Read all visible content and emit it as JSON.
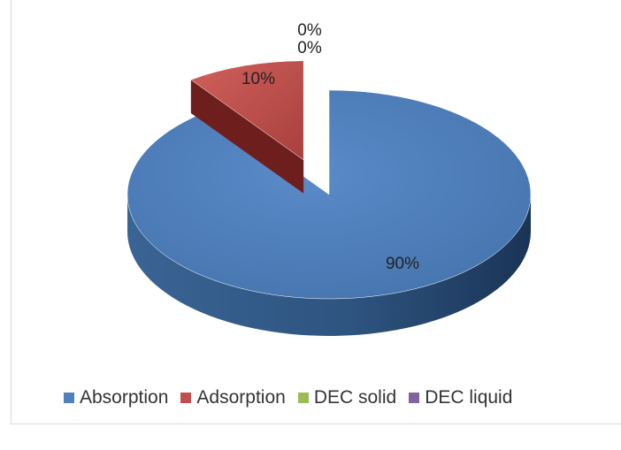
{
  "chart_data": {
    "type": "pie",
    "title": "",
    "series": [
      {
        "name": "Absorption",
        "value": 90,
        "label": "90%",
        "color": "#4f81bd"
      },
      {
        "name": "Adsorption",
        "value": 10,
        "label": "10%",
        "color": "#c0504d"
      },
      {
        "name": "DEC solid",
        "value": 0,
        "label": "0%",
        "color": "#9bbb59"
      },
      {
        "name": "DEC liquid",
        "value": 0,
        "label": "0%",
        "color": "#8064a2"
      }
    ],
    "legend_position": "bottom",
    "style": "3d-exploded"
  }
}
